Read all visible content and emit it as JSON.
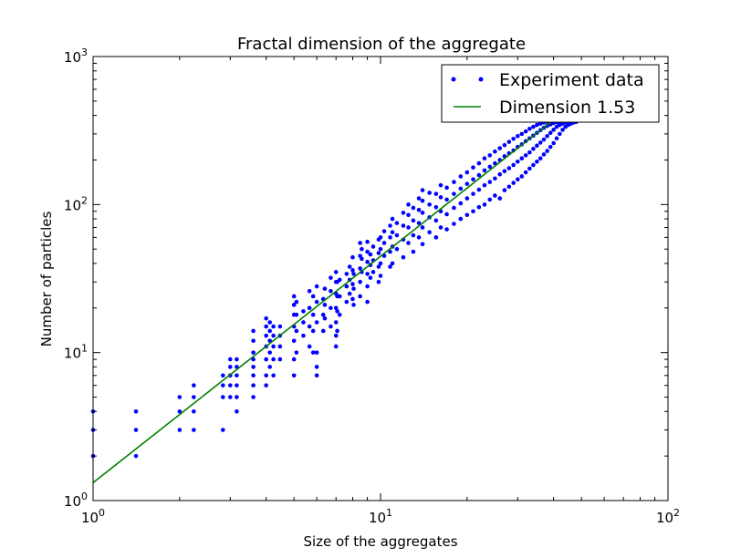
{
  "chart_data": {
    "type": "scatter",
    "title": "Fractal dimension of the aggregate",
    "xlabel": "Size of the aggregates",
    "ylabel": "Number of particles",
    "xscale": "log",
    "yscale": "log",
    "xlim": [
      1,
      100
    ],
    "ylim": [
      1,
      1000
    ],
    "grid": false,
    "legend_position": "top-right",
    "x_ticks": [
      {
        "base": "10",
        "exp": "0",
        "value": 1
      },
      {
        "base": "10",
        "exp": "1",
        "value": 10
      },
      {
        "base": "10",
        "exp": "2",
        "value": 100
      }
    ],
    "y_ticks": [
      {
        "base": "10",
        "exp": "0",
        "value": 1
      },
      {
        "base": "10",
        "exp": "1",
        "value": 10
      },
      {
        "base": "10",
        "exp": "2",
        "value": 100
      },
      {
        "base": "10",
        "exp": "3",
        "value": 1000
      }
    ],
    "series": [
      {
        "name": "Experiment data",
        "kind": "scatter",
        "color": "#0000ff",
        "points": [
          [
            1.0,
            2
          ],
          [
            1.0,
            3
          ],
          [
            1.0,
            4
          ],
          [
            1.41,
            2
          ],
          [
            1.41,
            3
          ],
          [
            1.41,
            4
          ],
          [
            2.0,
            3
          ],
          [
            2.0,
            4
          ],
          [
            2.0,
            5
          ],
          [
            2.24,
            3
          ],
          [
            2.24,
            4
          ],
          [
            2.24,
            5
          ],
          [
            2.24,
            6
          ],
          [
            2.83,
            3
          ],
          [
            2.83,
            5
          ],
          [
            2.83,
            6
          ],
          [
            2.83,
            7
          ],
          [
            3.0,
            5
          ],
          [
            3.0,
            6
          ],
          [
            3.0,
            7
          ],
          [
            3.0,
            8
          ],
          [
            3.0,
            9
          ],
          [
            3.16,
            4
          ],
          [
            3.16,
            5
          ],
          [
            3.16,
            6
          ],
          [
            3.16,
            7
          ],
          [
            3.16,
            8
          ],
          [
            3.16,
            9
          ],
          [
            3.61,
            5
          ],
          [
            3.61,
            6
          ],
          [
            3.61,
            7
          ],
          [
            3.61,
            8
          ],
          [
            3.61,
            9
          ],
          [
            3.61,
            10
          ],
          [
            3.61,
            12
          ],
          [
            3.61,
            14
          ],
          [
            4.0,
            6
          ],
          [
            4.0,
            7
          ],
          [
            4.0,
            9
          ],
          [
            4.0,
            11
          ],
          [
            4.0,
            13
          ],
          [
            4.0,
            15
          ],
          [
            4.0,
            17
          ],
          [
            4.12,
            8
          ],
          [
            4.12,
            10
          ],
          [
            4.12,
            12
          ],
          [
            4.12,
            14
          ],
          [
            4.12,
            16
          ],
          [
            4.24,
            7
          ],
          [
            4.24,
            9
          ],
          [
            4.24,
            11
          ],
          [
            4.24,
            13
          ],
          [
            4.24,
            15
          ],
          [
            4.47,
            9
          ],
          [
            4.47,
            11
          ],
          [
            4.47,
            13
          ],
          [
            4.47,
            15
          ],
          [
            5.0,
            7
          ],
          [
            5.0,
            9
          ],
          [
            5.0,
            12
          ],
          [
            5.0,
            15
          ],
          [
            5.0,
            18
          ],
          [
            5.0,
            21
          ],
          [
            5.0,
            24
          ],
          [
            5.1,
            10
          ],
          [
            5.1,
            14
          ],
          [
            5.1,
            18
          ],
          [
            5.1,
            22
          ],
          [
            5.39,
            13
          ],
          [
            5.39,
            16
          ],
          [
            5.39,
            19
          ],
          [
            5.66,
            11
          ],
          [
            5.66,
            15
          ],
          [
            5.66,
            20
          ],
          [
            5.66,
            26
          ],
          [
            5.83,
            10
          ],
          [
            5.83,
            14
          ],
          [
            5.83,
            18
          ],
          [
            5.83,
            24
          ],
          [
            6.0,
            7
          ],
          [
            6.0,
            8
          ],
          [
            6.0,
            10
          ],
          [
            6.0,
            16
          ],
          [
            6.0,
            22
          ],
          [
            6.0,
            28
          ],
          [
            6.32,
            14
          ],
          [
            6.32,
            18
          ],
          [
            6.32,
            23
          ],
          [
            6.4,
            17
          ],
          [
            6.4,
            21
          ],
          [
            6.4,
            27
          ],
          [
            6.71,
            15
          ],
          [
            6.71,
            20
          ],
          [
            6.71,
            26
          ],
          [
            6.71,
            32
          ],
          [
            7.0,
            11
          ],
          [
            7.0,
            13
          ],
          [
            7.0,
            16
          ],
          [
            7.0,
            20
          ],
          [
            7.0,
            25
          ],
          [
            7.0,
            30
          ],
          [
            7.0,
            35
          ],
          [
            7.07,
            14
          ],
          [
            7.07,
            19
          ],
          [
            7.07,
            24
          ],
          [
            7.07,
            30
          ],
          [
            7.21,
            18
          ],
          [
            7.21,
            24
          ],
          [
            7.21,
            31
          ],
          [
            7.62,
            22
          ],
          [
            7.62,
            28
          ],
          [
            7.62,
            34
          ],
          [
            7.81,
            25
          ],
          [
            7.81,
            31
          ],
          [
            7.81,
            38
          ],
          [
            8.0,
            23
          ],
          [
            8.0,
            29
          ],
          [
            8.0,
            36
          ],
          [
            8.0,
            44
          ],
          [
            8.06,
            21
          ],
          [
            8.06,
            27
          ],
          [
            8.06,
            34
          ],
          [
            8.49,
            24
          ],
          [
            8.49,
            30
          ],
          [
            8.49,
            37
          ],
          [
            8.49,
            45
          ],
          [
            8.49,
            55
          ],
          [
            8.6,
            35
          ],
          [
            8.6,
            43
          ],
          [
            8.6,
            50
          ],
          [
            9.0,
            22
          ],
          [
            9.0,
            28
          ],
          [
            9.0,
            34
          ],
          [
            9.0,
            41
          ],
          [
            9.0,
            48
          ],
          [
            9.0,
            56
          ],
          [
            9.22,
            32
          ],
          [
            9.22,
            39
          ],
          [
            9.22,
            46
          ],
          [
            9.43,
            35
          ],
          [
            9.43,
            42
          ],
          [
            9.43,
            52
          ],
          [
            9.85,
            30
          ],
          [
            9.85,
            38
          ],
          [
            9.85,
            47
          ],
          [
            9.85,
            58
          ],
          [
            10.0,
            33
          ],
          [
            10.0,
            40
          ],
          [
            10.0,
            50
          ],
          [
            10.0,
            60
          ],
          [
            10.3,
            45
          ],
          [
            10.3,
            55
          ],
          [
            10.3,
            66
          ],
          [
            10.8,
            38
          ],
          [
            10.8,
            48
          ],
          [
            10.8,
            60
          ],
          [
            10.8,
            72
          ],
          [
            11.0,
            40
          ],
          [
            11.0,
            52
          ],
          [
            11.0,
            65
          ],
          [
            11.0,
            80
          ],
          [
            11.4,
            50
          ],
          [
            11.4,
            62
          ],
          [
            11.4,
            75
          ],
          [
            12.0,
            44
          ],
          [
            12.0,
            58
          ],
          [
            12.0,
            72
          ],
          [
            12.0,
            88
          ],
          [
            12.5,
            55
          ],
          [
            12.5,
            70
          ],
          [
            12.5,
            85
          ],
          [
            12.5,
            100
          ],
          [
            13.0,
            48
          ],
          [
            13.0,
            62
          ],
          [
            13.0,
            78
          ],
          [
            13.0,
            95
          ],
          [
            13.6,
            60
          ],
          [
            13.6,
            75
          ],
          [
            13.6,
            92
          ],
          [
            13.6,
            110
          ],
          [
            14.0,
            54
          ],
          [
            14.0,
            70
          ],
          [
            14.0,
            88
          ],
          [
            14.0,
            106
          ],
          [
            14.0,
            125
          ],
          [
            14.8,
            65
          ],
          [
            14.8,
            82
          ],
          [
            14.8,
            100
          ],
          [
            14.8,
            120
          ],
          [
            15.6,
            60
          ],
          [
            15.6,
            78
          ],
          [
            15.6,
            96
          ],
          [
            15.6,
            118
          ],
          [
            16.2,
            70
          ],
          [
            16.2,
            90
          ],
          [
            16.2,
            112
          ],
          [
            16.2,
            135
          ],
          [
            17.0,
            68
          ],
          [
            17.0,
            86
          ],
          [
            17.0,
            108
          ],
          [
            17.0,
            130
          ],
          [
            18.0,
            74
          ],
          [
            18.0,
            95
          ],
          [
            18.0,
            118
          ],
          [
            18.0,
            142
          ],
          [
            19.0,
            80
          ],
          [
            19.0,
            102
          ],
          [
            19.0,
            128
          ],
          [
            19.0,
            155
          ],
          [
            20.0,
            85
          ],
          [
            20.0,
            110
          ],
          [
            20.0,
            138
          ],
          [
            20.0,
            165
          ],
          [
            21.0,
            90
          ],
          [
            21.0,
            118
          ],
          [
            21.0,
            148
          ],
          [
            21.0,
            178
          ],
          [
            22.0,
            96
          ],
          [
            22.0,
            126
          ],
          [
            22.0,
            158
          ],
          [
            22.0,
            190
          ],
          [
            23.0,
            100
          ],
          [
            23.0,
            135
          ],
          [
            23.0,
            170
          ],
          [
            23.0,
            205
          ],
          [
            24.0,
            108
          ],
          [
            24.0,
            142
          ],
          [
            24.0,
            180
          ],
          [
            24.0,
            215
          ],
          [
            25.0,
            115
          ],
          [
            25.0,
            150
          ],
          [
            25.0,
            190
          ],
          [
            25.0,
            228
          ],
          [
            26.0,
            110
          ],
          [
            26.0,
            160
          ],
          [
            26.0,
            200
          ],
          [
            26.0,
            240
          ],
          [
            27.0,
            125
          ],
          [
            27.0,
            168
          ],
          [
            27.0,
            212
          ],
          [
            27.0,
            252
          ],
          [
            28.0,
            132
          ],
          [
            28.0,
            176
          ],
          [
            28.0,
            222
          ],
          [
            28.0,
            265
          ],
          [
            29.0,
            140
          ],
          [
            29.0,
            185
          ],
          [
            29.0,
            232
          ],
          [
            29.0,
            278
          ],
          [
            30.0,
            148
          ],
          [
            30.0,
            195
          ],
          [
            30.0,
            245
          ],
          [
            30.0,
            290
          ],
          [
            31.0,
            155
          ],
          [
            31.0,
            205
          ],
          [
            31.0,
            255
          ],
          [
            31.0,
            300
          ],
          [
            32.0,
            165
          ],
          [
            32.0,
            215
          ],
          [
            32.0,
            268
          ],
          [
            32.0,
            312
          ],
          [
            33.0,
            175
          ],
          [
            33.0,
            225
          ],
          [
            33.0,
            280
          ],
          [
            33.0,
            325
          ],
          [
            34.0,
            185
          ],
          [
            34.0,
            238
          ],
          [
            34.0,
            292
          ],
          [
            34.0,
            335
          ],
          [
            35.0,
            195
          ],
          [
            35.0,
            250
          ],
          [
            35.0,
            305
          ],
          [
            35.0,
            345
          ],
          [
            36.0,
            205
          ],
          [
            36.0,
            262
          ],
          [
            36.0,
            318
          ],
          [
            36.0,
            352
          ],
          [
            37.0,
            218
          ],
          [
            37.0,
            275
          ],
          [
            37.0,
            330
          ],
          [
            37.0,
            358
          ],
          [
            38.0,
            230
          ],
          [
            38.0,
            290
          ],
          [
            38.0,
            340
          ],
          [
            38.0,
            362
          ],
          [
            39.0,
            245
          ],
          [
            39.0,
            305
          ],
          [
            39.0,
            348
          ],
          [
            39.0,
            368
          ],
          [
            40.0,
            260
          ],
          [
            40.0,
            320
          ],
          [
            40.0,
            355
          ],
          [
            40.0,
            370
          ],
          [
            41.0,
            280
          ],
          [
            41.0,
            335
          ],
          [
            41.0,
            360
          ],
          [
            42.0,
            300
          ],
          [
            42.0,
            345
          ],
          [
            42.0,
            365
          ],
          [
            43.0,
            320
          ],
          [
            43.0,
            352
          ],
          [
            43.0,
            368
          ],
          [
            44.0,
            335
          ],
          [
            44.0,
            358
          ],
          [
            44.0,
            370
          ],
          [
            45.0,
            345
          ],
          [
            45.0,
            362
          ],
          [
            46.0,
            352
          ],
          [
            46.0,
            366
          ],
          [
            47.0,
            358
          ],
          [
            47.0,
            370
          ],
          [
            48.0,
            362
          ],
          [
            48.0,
            372
          ]
        ]
      },
      {
        "name": "Dimension 1.53",
        "kind": "line",
        "color": "#008000",
        "dimension": 1.53,
        "prefactor": 1.32,
        "x_range": [
          1,
          48
        ]
      }
    ]
  }
}
